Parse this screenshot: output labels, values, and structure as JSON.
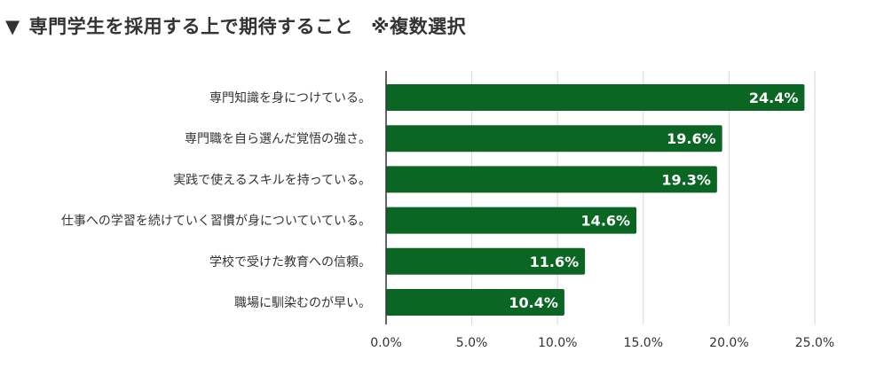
{
  "title": {
    "marker": "▼",
    "text": "専門学生を採用する上で期待すること",
    "note": "※複数選択"
  },
  "chart_data": {
    "type": "bar",
    "orientation": "horizontal",
    "categories": [
      "専門知識を身につけている。",
      "専門職を自ら選んだ覚悟の強さ。",
      "実践で使えるスキルを持っている。",
      "仕事への学習を続けていく習慣が身についていている。",
      "学校で受けた教育への信頼。",
      "職場に馴染むのが早い。"
    ],
    "values": [
      24.4,
      19.6,
      19.3,
      14.6,
      11.6,
      10.4
    ],
    "value_labels": [
      "24.4%",
      "19.6%",
      "19.3%",
      "14.6%",
      "11.6%",
      "10.4%"
    ],
    "xlim": [
      0,
      25
    ],
    "x_ticks": [
      0,
      5,
      10,
      15,
      20,
      25
    ],
    "x_tick_labels": [
      "0.0%",
      "5.0%",
      "10.0%",
      "15.0%",
      "20.0%",
      "25.0%"
    ],
    "xlabel": "",
    "ylabel": "",
    "grid": true,
    "bar_color": "#0b6623",
    "label_color": "#ffffff",
    "grid_color": "#d9d9d9",
    "axis_color": "#333333",
    "text_color": "#333333"
  }
}
